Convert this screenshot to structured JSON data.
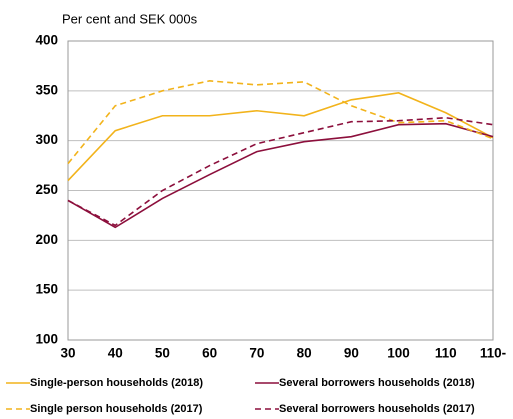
{
  "chart_data": {
    "type": "line",
    "subtitle": "Per cent and SEK 000s",
    "categories": [
      "30",
      "40",
      "50",
      "60",
      "70",
      "80",
      "90",
      "100",
      "110",
      "110-"
    ],
    "ylim": [
      100,
      400
    ],
    "yticks": [
      100,
      150,
      200,
      250,
      300,
      350,
      400
    ],
    "grid": true,
    "series": [
      {
        "name": "Single-person households (2018)",
        "color": "#f2b31b",
        "style": "solid",
        "values": [
          260,
          310,
          325,
          325,
          330,
          325,
          341,
          348,
          328,
          303
        ]
      },
      {
        "name": "Several borrowers households (2018)",
        "color": "#8c0f3c",
        "style": "solid",
        "values": [
          240,
          213,
          242,
          266,
          289,
          299,
          304,
          316,
          317,
          304
        ]
      },
      {
        "name": "Single person households (2017)",
        "color": "#f2b31b",
        "style": "dashed",
        "values": [
          277,
          335,
          350,
          360,
          356,
          359,
          335,
          318,
          320,
          302
        ]
      },
      {
        "name": "Several borrowers households (2017)",
        "color": "#8c0f3c",
        "style": "dashed",
        "values": [
          240,
          215,
          250,
          275,
          297,
          308,
          319,
          320,
          323,
          316
        ]
      }
    ]
  }
}
